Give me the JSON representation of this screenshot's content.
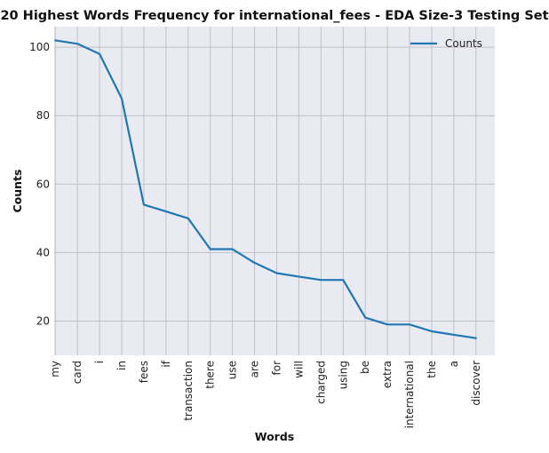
{
  "chart_data": {
    "type": "line",
    "title": "20 Highest Words Frequency for international_fees - EDA Size-3 Testing Set",
    "xlabel": "Words",
    "ylabel": "Counts",
    "categories": [
      "my",
      "card",
      "i",
      "in",
      "fees",
      "if",
      "transaction",
      "there",
      "use",
      "are",
      "for",
      "will",
      "charged",
      "using",
      "be",
      "extra",
      "international",
      "the",
      "a",
      "discover"
    ],
    "series": [
      {
        "name": "Counts",
        "values": [
          102,
          101,
          98,
          85,
          54,
          52,
          50,
          41,
          41,
          37,
          34,
          33,
          32,
          32,
          21,
          19,
          19,
          17,
          16,
          15
        ],
        "color": "#1f77b4"
      }
    ],
    "ylim": [
      10,
      106
    ],
    "yticks": [
      20,
      40,
      60,
      80,
      100
    ],
    "grid": true,
    "legend": "top-right",
    "background": "#eaeaf2",
    "grid_color": "#c0c0c8"
  }
}
